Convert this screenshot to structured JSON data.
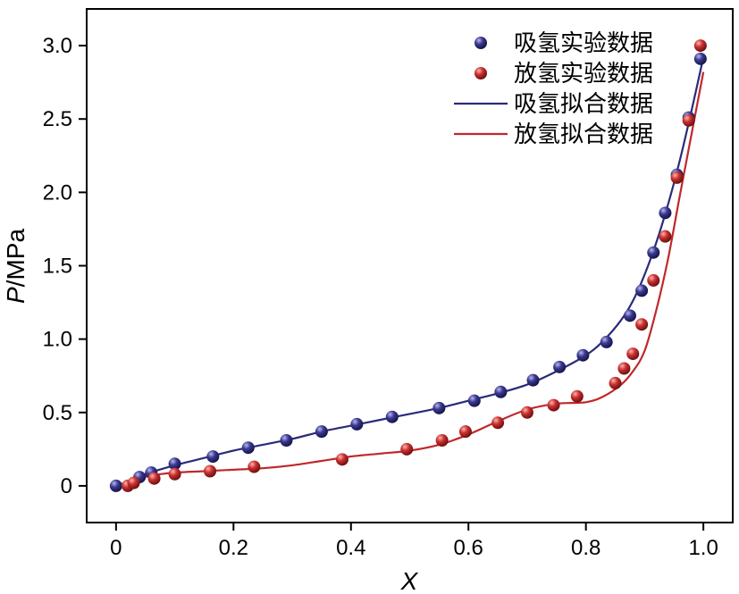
{
  "chart_data": {
    "type": "scatter",
    "xlabel": "X",
    "ylabel_italic": "P",
    "ylabel_unit": "/MPa",
    "xlim": [
      -0.05,
      1.05
    ],
    "ylim": [
      -0.25,
      3.25
    ],
    "xticks": [
      0,
      0.2,
      0.4,
      0.6,
      0.8,
      1.0
    ],
    "xtick_labels": [
      "0",
      "0.2",
      "0.4",
      "0.6",
      "0.8",
      "1.0"
    ],
    "yticks": [
      0,
      0.5,
      1.0,
      1.5,
      2.0,
      2.5,
      3.0
    ],
    "ytick_labels": [
      "0",
      "0.5",
      "1.0",
      "1.5",
      "2.0",
      "2.5",
      "3.0"
    ],
    "legend_position": "top-right",
    "colors": {
      "absorption": "#2b2a7a",
      "desorption": "#c0282b"
    },
    "series": [
      {
        "name": "吸氢实验数据",
        "kind": "points",
        "color": "#2b2a7a",
        "x": [
          0.0,
          0.04,
          0.06,
          0.1,
          0.165,
          0.225,
          0.29,
          0.35,
          0.41,
          0.47,
          0.55,
          0.61,
          0.655,
          0.71,
          0.755,
          0.795,
          0.835,
          0.875,
          0.895,
          0.915,
          0.935,
          0.955,
          0.975,
          0.995
        ],
        "y": [
          0.0,
          0.06,
          0.09,
          0.15,
          0.2,
          0.26,
          0.31,
          0.37,
          0.42,
          0.47,
          0.53,
          0.58,
          0.64,
          0.72,
          0.81,
          0.89,
          0.98,
          1.16,
          1.33,
          1.59,
          1.86,
          2.12,
          2.51,
          2.91
        ]
      },
      {
        "name": "放氢实验数据",
        "kind": "points",
        "color": "#c0282b",
        "x": [
          0.02,
          0.03,
          0.065,
          0.1,
          0.16,
          0.235,
          0.385,
          0.495,
          0.555,
          0.595,
          0.65,
          0.7,
          0.745,
          0.785,
          0.85,
          0.865,
          0.88,
          0.895,
          0.915,
          0.935,
          0.955,
          0.975,
          0.995
        ],
        "y": [
          0.0,
          0.02,
          0.05,
          0.08,
          0.1,
          0.13,
          0.18,
          0.25,
          0.31,
          0.37,
          0.43,
          0.5,
          0.55,
          0.61,
          0.7,
          0.8,
          0.9,
          1.1,
          1.4,
          1.7,
          2.1,
          2.49,
          3.0
        ]
      },
      {
        "name": "吸氢拟合数据",
        "kind": "line",
        "color": "#2b2a7a",
        "x": [
          0.0,
          0.02,
          0.05,
          0.1,
          0.15,
          0.2,
          0.25,
          0.3,
          0.35,
          0.4,
          0.45,
          0.5,
          0.55,
          0.6,
          0.65,
          0.7,
          0.75,
          0.8,
          0.83,
          0.86,
          0.88,
          0.9,
          0.92,
          0.94,
          0.96,
          0.98,
          1.0
        ],
        "y": [
          0.0,
          0.03,
          0.08,
          0.14,
          0.19,
          0.24,
          0.28,
          0.32,
          0.37,
          0.41,
          0.45,
          0.49,
          0.53,
          0.58,
          0.63,
          0.69,
          0.78,
          0.89,
          0.99,
          1.13,
          1.26,
          1.44,
          1.66,
          1.92,
          2.22,
          2.56,
          2.92
        ]
      },
      {
        "name": "放氢拟合数据",
        "kind": "line",
        "color": "#c0282b",
        "x": [
          0.0,
          0.03,
          0.06,
          0.1,
          0.15,
          0.2,
          0.25,
          0.3,
          0.35,
          0.4,
          0.45,
          0.5,
          0.55,
          0.6,
          0.65,
          0.7,
          0.75,
          0.8,
          0.83,
          0.86,
          0.88,
          0.9,
          0.92,
          0.94,
          0.96,
          0.98,
          1.0
        ],
        "y": [
          0.0,
          0.04,
          0.07,
          0.09,
          0.1,
          0.11,
          0.12,
          0.14,
          0.17,
          0.2,
          0.22,
          0.24,
          0.28,
          0.35,
          0.44,
          0.52,
          0.56,
          0.57,
          0.61,
          0.69,
          0.78,
          0.92,
          1.2,
          1.55,
          1.98,
          2.4,
          2.82
        ]
      }
    ]
  }
}
